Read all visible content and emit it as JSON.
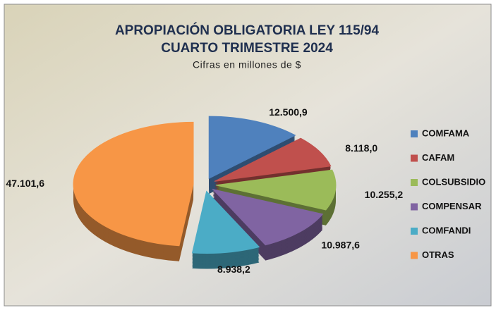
{
  "chart_data": {
    "type": "pie",
    "title": "APROPIACIÓN OBLIGATORIA LEY 115/94",
    "subtitle": "CUARTO TRIMESTRE 2024",
    "note": "Cifras en millones de $",
    "categories": [
      "COMFAMA",
      "CAFAM",
      "COLSUBSIDIO",
      "COMPENSAR",
      "COMFANDI",
      "OTRAS"
    ],
    "values": [
      12500.9,
      8118.0,
      10255.2,
      10987.6,
      8938.2,
      47101.6
    ],
    "value_labels": [
      "12.500,9",
      "8.118,0",
      "10.255,2",
      "10.987,6",
      "8.938,2",
      "47.101,6"
    ],
    "colors": [
      "#4f81bd",
      "#c0504d",
      "#9bbb59",
      "#8064a2",
      "#4bacc6",
      "#f79646"
    ],
    "legend": "right"
  }
}
